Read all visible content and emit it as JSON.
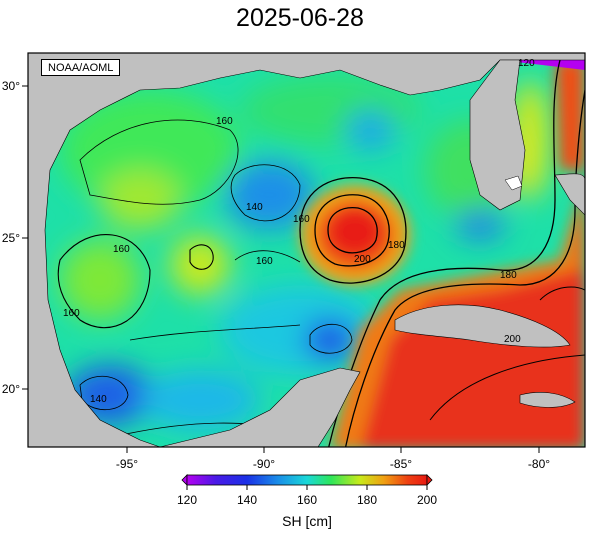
{
  "title": "2025-06-28",
  "credit": "NOAA/AOML",
  "map": {
    "lon_ticks": [
      "-95°",
      "-90°",
      "-85°",
      "-80°"
    ],
    "lat_ticks": [
      "30°",
      "25°",
      "20°"
    ],
    "contour_labels": [
      "160",
      "140",
      "160",
      "160",
      "160",
      "160",
      "140",
      "160",
      "200",
      "180",
      "180",
      "200",
      "120"
    ],
    "land_color": "#c0c0c0",
    "ocean_colors": {
      "low": "#1a2ee6",
      "mid": "#19d6c8",
      "green": "#2ee65a",
      "yellow": "#d8e81a",
      "orange": "#f07a12",
      "high": "#ea1a12"
    }
  },
  "colorbar": {
    "ticks": [
      "120",
      "140",
      "160",
      "180",
      "200"
    ],
    "title": "SH [cm]"
  }
}
